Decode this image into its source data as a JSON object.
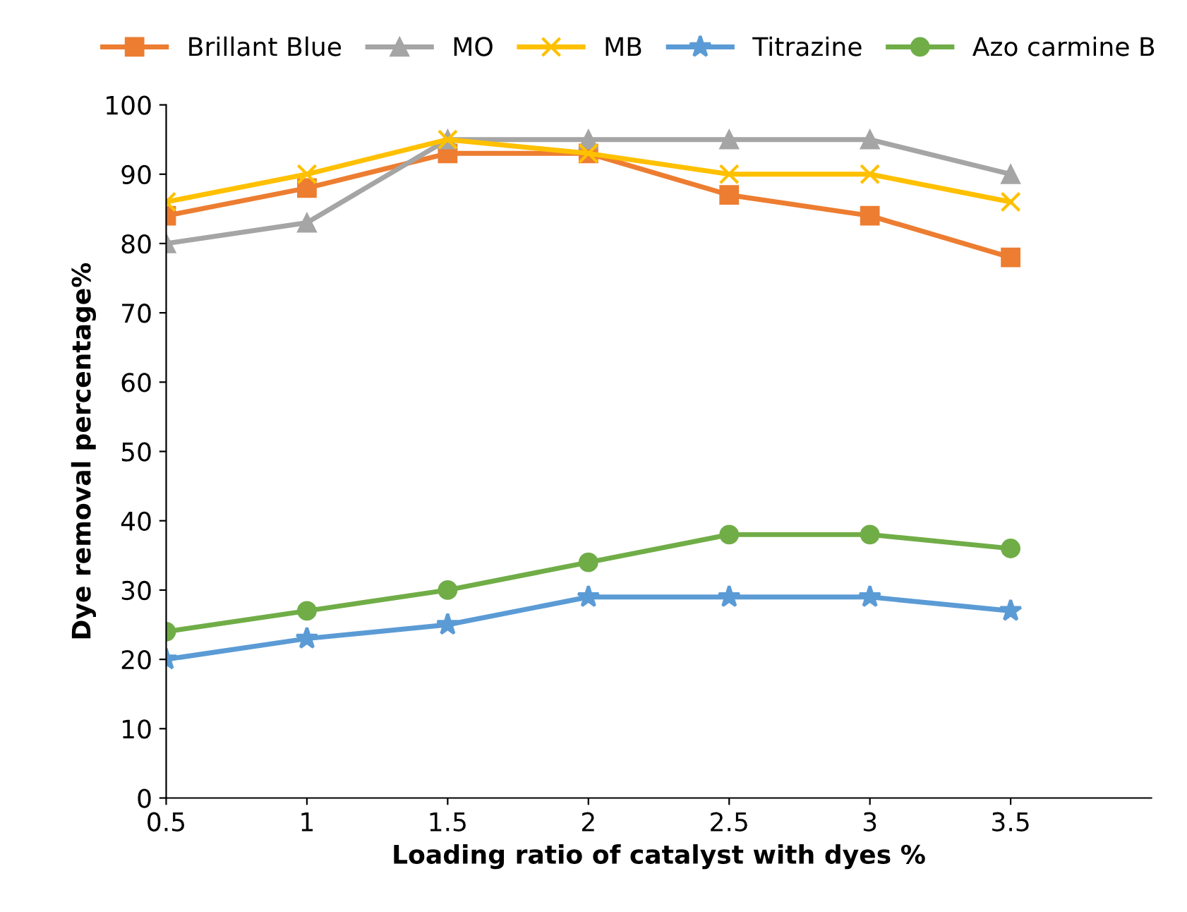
{
  "chart_data": {
    "type": "line",
    "xlabel": "Loading ratio of catalyst with dyes %",
    "ylabel": "Dye removal percentage%",
    "x": [
      0.5,
      1,
      1.5,
      2,
      2.5,
      3,
      3.5
    ],
    "series": [
      {
        "name": "Brillant Blue",
        "color": "#ed7d31",
        "marker": "square",
        "values": [
          84,
          88,
          93,
          93,
          87,
          84,
          78
        ]
      },
      {
        "name": "MO",
        "color": "#a5a5a5",
        "marker": "triangle",
        "values": [
          80,
          83,
          95,
          95,
          95,
          95,
          90
        ]
      },
      {
        "name": "MB",
        "color": "#ffc000",
        "marker": "cross",
        "values": [
          86,
          90,
          95,
          93,
          90,
          90,
          86
        ]
      },
      {
        "name": "Titrazine",
        "color": "#5b9bd5",
        "marker": "star",
        "values": [
          20,
          23,
          25,
          29,
          29,
          29,
          27
        ]
      },
      {
        "name": "Azo carmine B",
        "color": "#70ad47",
        "marker": "circle",
        "values": [
          24,
          27,
          30,
          34,
          38,
          38,
          36
        ]
      }
    ],
    "xlim": [
      0.5,
      4
    ],
    "xticks": [
      0.5,
      1,
      1.5,
      2,
      2.5,
      3,
      3.5
    ],
    "ylim": [
      0,
      100
    ],
    "yticks": [
      0,
      10,
      20,
      30,
      40,
      50,
      60,
      70,
      80,
      90,
      100
    ],
    "grid": false,
    "legend": "top",
    "line_style": "solid"
  }
}
